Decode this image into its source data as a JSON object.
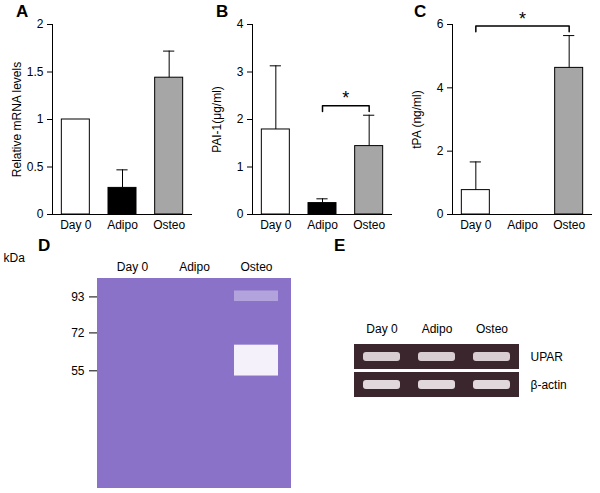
{
  "chart_data": [
    {
      "type": "bar",
      "title": "A",
      "ylabel": "Relative mRNA levels",
      "categories": [
        "Day 0",
        "Adipo",
        "Osteo"
      ],
      "values": [
        1.0,
        0.28,
        1.44
      ],
      "errors": [
        0,
        0.19,
        0.28
      ],
      "colors": [
        "#ffffff",
        "#000000",
        "#a6a6a6"
      ],
      "ylim": [
        0,
        2
      ],
      "yticks": [
        0,
        0.5,
        1,
        1.5,
        2
      ]
    },
    {
      "type": "bar",
      "title": "B",
      "ylabel": "PAI-1(μg/ml)",
      "categories": [
        "Day 0",
        "Adipo",
        "Osteo"
      ],
      "values": [
        1.79,
        0.24,
        1.44
      ],
      "errors": [
        1.34,
        0.09,
        0.65
      ],
      "colors": [
        "#ffffff",
        "#000000",
        "#a6a6a6"
      ],
      "ylim": [
        0,
        4
      ],
      "yticks": [
        0,
        1,
        2,
        3,
        4
      ],
      "significance": [
        {
          "between": [
            "Adipo",
            "Osteo"
          ],
          "label": "*"
        }
      ]
    },
    {
      "type": "bar",
      "title": "C",
      "ylabel": "tPA (ng/ml)",
      "categories": [
        "Day 0",
        "Adipo",
        "Osteo"
      ],
      "values": [
        0.77,
        0,
        4.63
      ],
      "errors": [
        0.89,
        0,
        1.02
      ],
      "colors": [
        "#ffffff",
        "#000000",
        "#a6a6a6"
      ],
      "ylim": [
        0,
        6
      ],
      "yticks": [
        0,
        2,
        4,
        6
      ],
      "significance": [
        {
          "between": [
            "Day 0",
            "Osteo"
          ],
          "label": "*"
        }
      ]
    },
    {
      "type": "gel",
      "title": "D",
      "ylabel": "kDa",
      "log": "y",
      "categories": [
        "Day 0",
        "Adipo",
        "Osteo"
      ],
      "color": "#8a72c9",
      "ylim": [
        24,
        106
      ],
      "yticks": [
        93,
        72,
        55
      ],
      "bands": [
        {
          "lane": "Osteo",
          "from": 53,
          "to": 66,
          "intensity": 0.9
        },
        {
          "lane": "Osteo",
          "from": 90,
          "to": 97,
          "intensity": 0.35
        }
      ]
    },
    {
      "type": "gel",
      "title": "E",
      "categories": [
        "Day 0",
        "Adipo",
        "Osteo"
      ],
      "rows": [
        "UPAR",
        "β-actin"
      ],
      "color": "#3b262d",
      "bands": [
        {
          "row": "UPAR",
          "lane": "Day 0",
          "intensity": 0.85
        },
        {
          "row": "UPAR",
          "lane": "Adipo",
          "intensity": 0.85
        },
        {
          "row": "UPAR",
          "lane": "Osteo",
          "intensity": 0.85
        },
        {
          "row": "β-actin",
          "lane": "Day 0",
          "intensity": 0.9
        },
        {
          "row": "β-actin",
          "lane": "Adipo",
          "intensity": 0.9
        },
        {
          "row": "β-actin",
          "lane": "Osteo",
          "intensity": 0.9
        }
      ]
    }
  ]
}
